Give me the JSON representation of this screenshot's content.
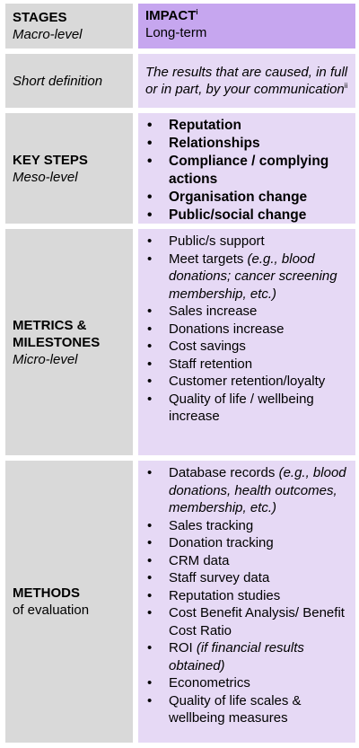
{
  "header": {
    "stages_label": "STAGES",
    "stages_sub": "Macro-level",
    "impact_label": "IMPACT",
    "impact_sup": "i",
    "impact_sub": "Long-term"
  },
  "definition": {
    "label": "Short definition",
    "text": "The results that are caused, in full or in part, by your communication",
    "sup": "ii"
  },
  "key_steps": {
    "label": "KEY STEPS",
    "sub": "Meso-level",
    "items": [
      "Reputation",
      "Relationships",
      "Compliance / complying actions",
      "Organisation change",
      "Public/social change"
    ]
  },
  "metrics": {
    "label": "METRICS & MILESTONES",
    "sub": "Micro-level",
    "items": [
      {
        "text": "Public/s support",
        "italic": ""
      },
      {
        "text": "Meet targets ",
        "italic": "(e.g., blood donations; cancer screening membership, etc.)"
      },
      {
        "text": "Sales increase",
        "italic": ""
      },
      {
        "text": "Donations increase",
        "italic": ""
      },
      {
        "text": "Cost savings",
        "italic": ""
      },
      {
        "text": "Staff retention",
        "italic": ""
      },
      {
        "text": "Customer retention/loyalty",
        "italic": ""
      },
      {
        "text": "Quality of life / wellbeing increase",
        "italic": ""
      }
    ]
  },
  "methods": {
    "label": "METHODS",
    "sub": "of evaluation",
    "items": [
      {
        "text": "Database records ",
        "italic": "(e.g., blood donations, health outcomes, membership, etc.)"
      },
      {
        "text": "Sales tracking",
        "italic": ""
      },
      {
        "text": "Donation tracking",
        "italic": ""
      },
      {
        "text": "CRM data",
        "italic": ""
      },
      {
        "text": "Staff survey data",
        "italic": ""
      },
      {
        "text": "Reputation studies",
        "italic": ""
      },
      {
        "text": "Cost Benefit Analysis/ Benefit Cost Ratio",
        "italic": ""
      },
      {
        "text": "ROI ",
        "italic": "(if financial results obtained)"
      },
      {
        "text": "Econometrics",
        "italic": ""
      },
      {
        "text": "Quality of life scales & wellbeing measures",
        "italic": ""
      }
    ]
  },
  "colors": {
    "label_bg": "#d9d9d9",
    "impact_header_bg": "#c6a6ef",
    "impact_body_bg": "#e6d9f5"
  }
}
